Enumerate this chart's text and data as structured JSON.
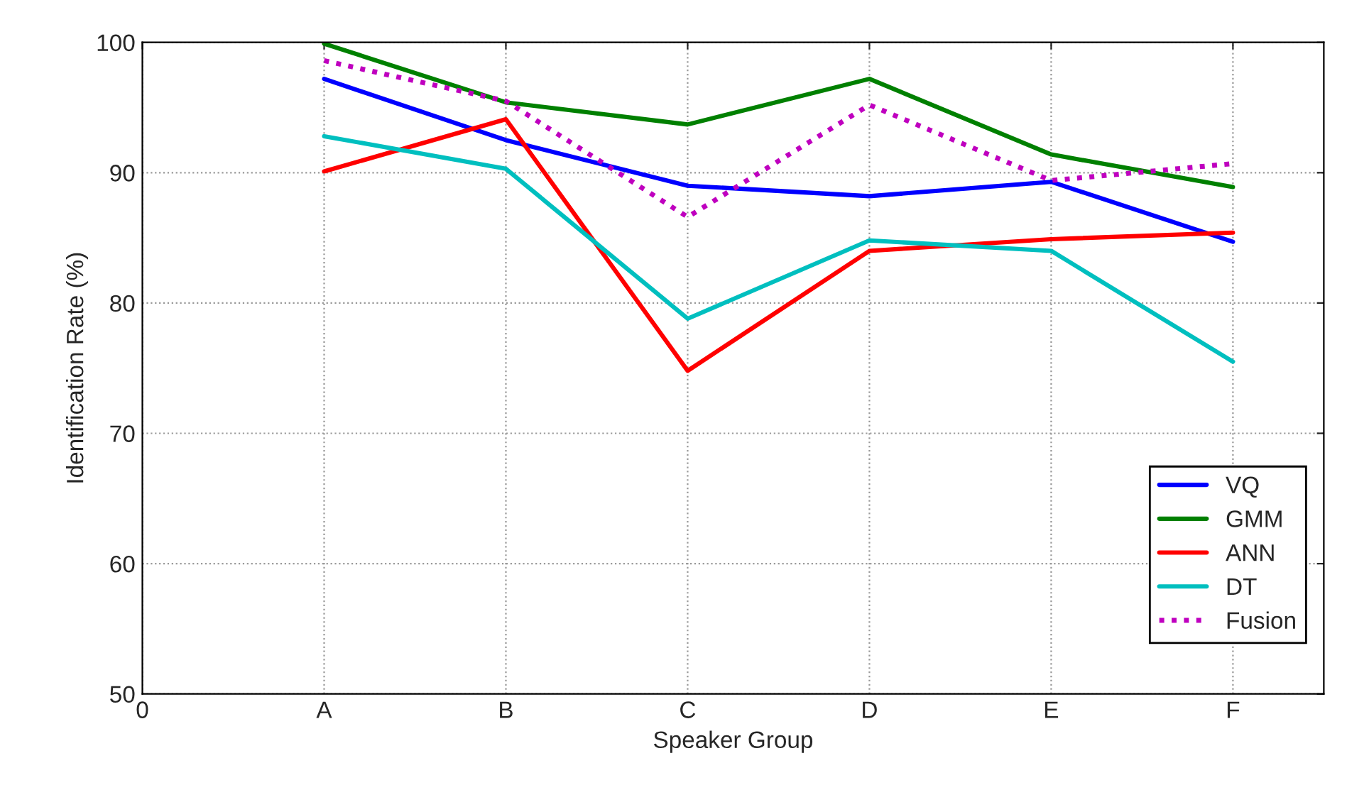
{
  "chart_data": {
    "type": "line",
    "xlabel": "Speaker Group",
    "ylabel": "Identification Rate (%)",
    "categories": [
      "0",
      "A",
      "B",
      "C",
      "D",
      "E",
      "F"
    ],
    "ylim": [
      50,
      100
    ],
    "yticks": [
      50,
      60,
      70,
      80,
      90,
      100
    ],
    "grid": true,
    "legend": "bottom right",
    "series": [
      {
        "name": "VQ",
        "color": "#0000ff",
        "values": [
          null,
          97.2,
          92.5,
          89.0,
          88.2,
          89.3,
          84.7
        ]
      },
      {
        "name": "GMM",
        "color": "#008000",
        "values": [
          null,
          99.9,
          95.4,
          93.7,
          97.2,
          91.4,
          88.9
        ]
      },
      {
        "name": "ANN",
        "color": "#ff0000",
        "values": [
          null,
          90.1,
          94.1,
          74.8,
          84.0,
          84.9,
          85.4
        ]
      },
      {
        "name": "DT",
        "color": "#00bfbf",
        "values": [
          null,
          92.8,
          90.3,
          78.8,
          84.8,
          84.0,
          75.5
        ]
      },
      {
        "name": "Fusion",
        "color": "#bf00bf",
        "line_style": "dotted",
        "values": [
          null,
          98.6,
          95.5,
          86.6,
          95.2,
          89.4,
          90.7
        ]
      }
    ]
  }
}
